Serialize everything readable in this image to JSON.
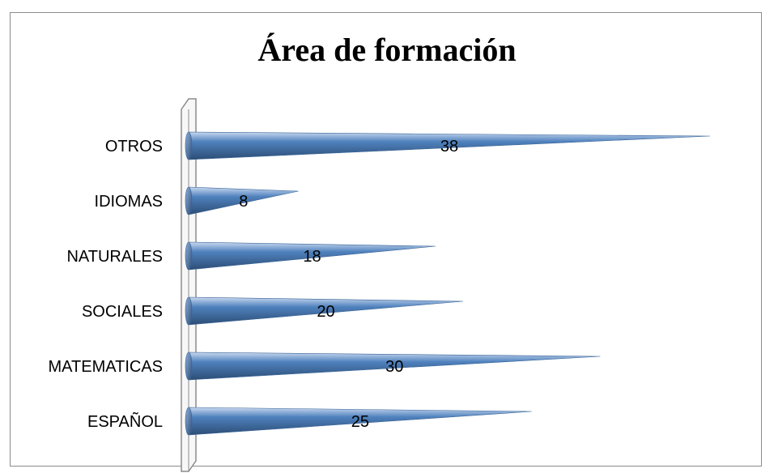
{
  "chart_data": {
    "type": "bar",
    "orientation": "horizontal",
    "style": "3d-cone",
    "title": "Área de formación",
    "categories": [
      "ESPAÑOL",
      "MATEMATICAS",
      "SOCIALES",
      "NATURALES",
      "IDIOMAS",
      "OTROS"
    ],
    "values": [
      25,
      30,
      20,
      18,
      8,
      38
    ],
    "data_labels": [
      "25",
      "30",
      "20",
      "18",
      "8",
      "38"
    ],
    "xlim": [
      0,
      38
    ],
    "grid": false,
    "legend": "none",
    "colors": {
      "bar_light": "#c9d9f0",
      "bar_mid": "#4f81bd",
      "bar_dark": "#2c4d75",
      "wall": "#8c8c8c"
    }
  }
}
